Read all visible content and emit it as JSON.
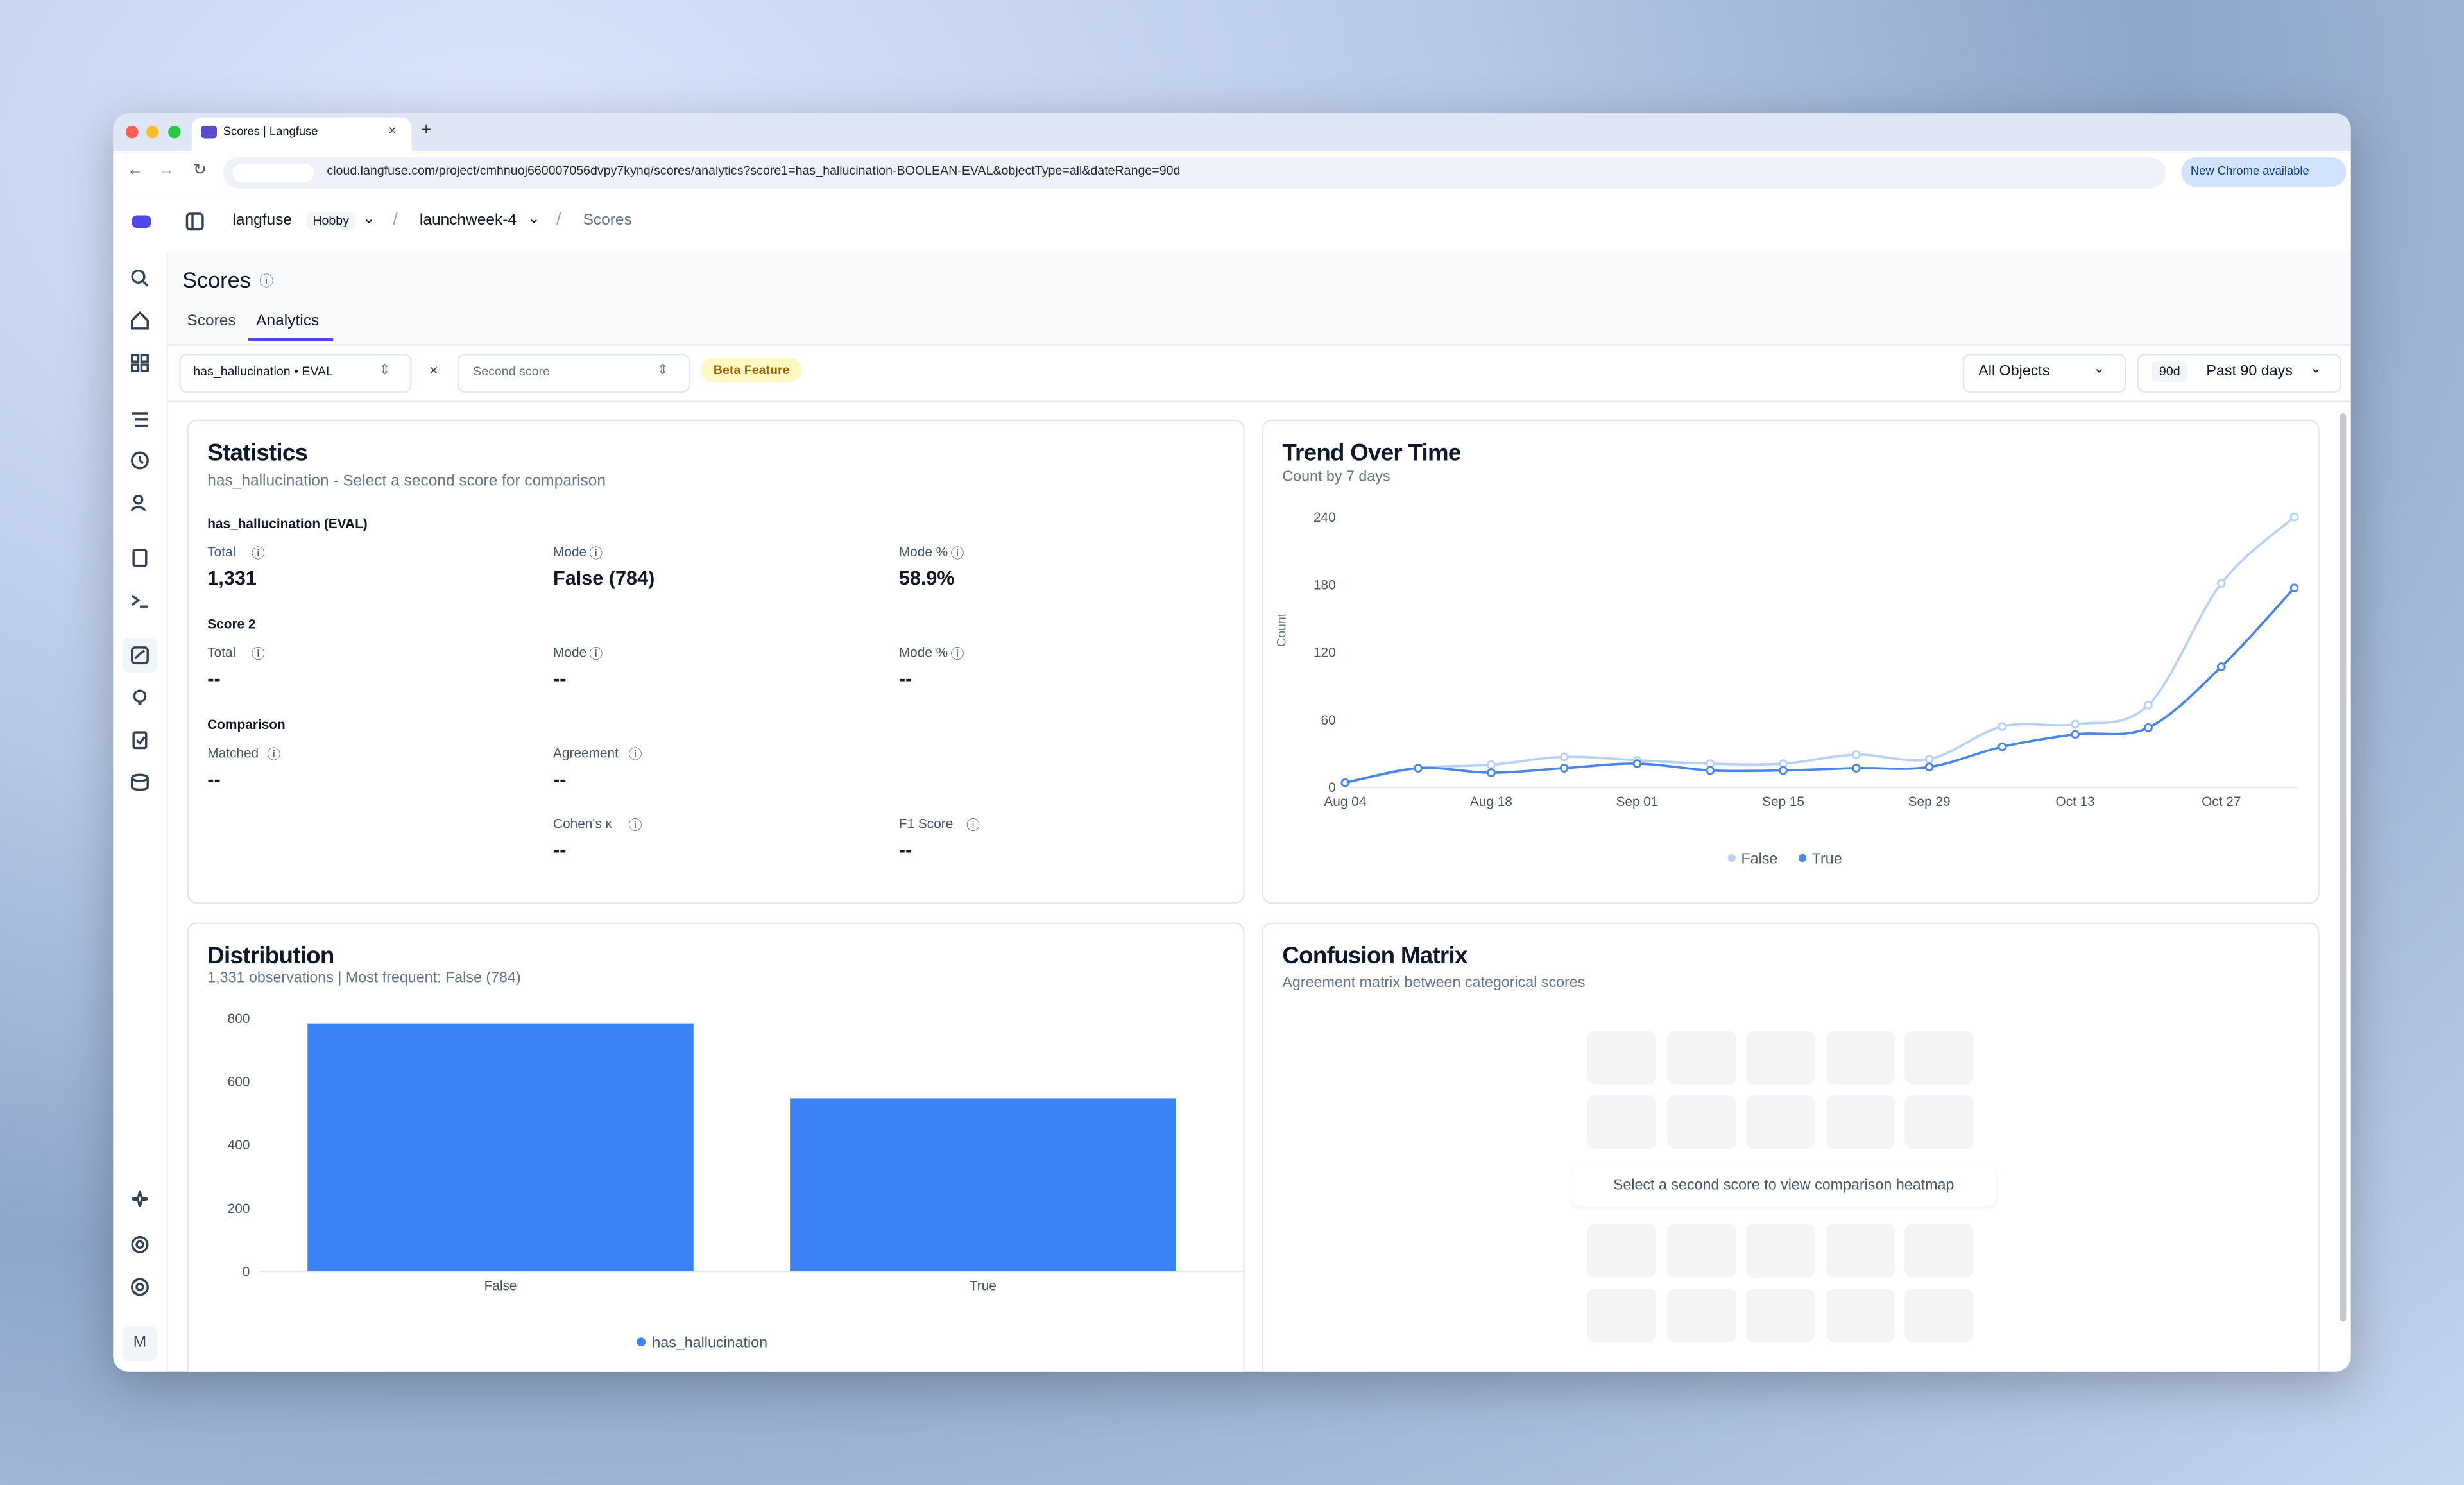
{
  "browser": {
    "tab_title": "Scores | Langfuse",
    "url": "cloud.langfuse.com/project/cmhnuoj660007056dvpy7kynq/scores/analytics?score1=has_hallucination-BOOLEAN-EVAL&objectType=all&dateRange=90d",
    "update_button": "New Chrome available"
  },
  "breadcrumb": {
    "org": "langfuse",
    "plan": "Hobby",
    "project": "launchweek-4",
    "page": "Scores"
  },
  "sidebar": {
    "avatar": "M"
  },
  "header": {
    "title": "Scores",
    "tabs": [
      "Scores",
      "Analytics"
    ]
  },
  "filters": {
    "score1": "has_hallucination • EVAL",
    "score2": "Second score",
    "badge": "Beta Feature",
    "objects": "All Objects",
    "range_badge": "90d",
    "range": "Past 90 days"
  },
  "statistics": {
    "title": "Statistics",
    "subtitle": "has_hallucination - Select a second score for comparison",
    "sections": [
      {
        "heading": "has_hallucination (EVAL)",
        "items": [
          {
            "label": "Total",
            "value": "1,331"
          },
          {
            "label": "Mode",
            "value": "False (784)"
          },
          {
            "label": "Mode %",
            "value": "58.9%"
          }
        ]
      },
      {
        "heading": "Score 2",
        "items": [
          {
            "label": "Total",
            "value": "--"
          },
          {
            "label": "Mode",
            "value": "--"
          },
          {
            "label": "Mode %",
            "value": "--"
          }
        ]
      },
      {
        "heading": "Comparison",
        "items": [
          {
            "label": "Matched",
            "value": "--"
          },
          {
            "label": "Agreement",
            "value": "--"
          },
          {
            "label": "Cohen's κ",
            "value": "--"
          },
          {
            "label": "F1 Score",
            "value": "--"
          }
        ]
      }
    ]
  },
  "confusion_matrix": {
    "title": "Confusion Matrix",
    "subtitle": "Agreement matrix between categorical scores",
    "message": "Select a second score to view comparison heatmap"
  },
  "chart_data": [
    {
      "type": "line",
      "title": "Trend Over Time",
      "subtitle": "Count by 7 days",
      "y_label": "Count",
      "categories": [
        "Aug 04",
        null,
        "Aug 18",
        null,
        "Sep 01",
        null,
        "Sep 15",
        null,
        "Sep 29",
        null,
        "Oct 13",
        null,
        "Oct 27",
        null
      ],
      "series": [
        {
          "name": "False",
          "color": "#b9d1f7",
          "values": [
            4,
            17,
            20,
            27,
            24,
            21,
            21,
            29,
            25,
            54,
            56,
            73,
            181,
            240
          ]
        },
        {
          "name": "True",
          "color": "#4a86e8",
          "values": [
            4,
            17,
            13,
            17,
            21,
            15,
            15,
            17,
            18,
            36,
            47,
            53,
            107,
            177
          ]
        }
      ],
      "ylim": [
        0,
        240
      ],
      "yticks": [
        0,
        60,
        120,
        180,
        240
      ]
    },
    {
      "type": "bar",
      "title": "Distribution",
      "subtitle": "1,331 observations | Most frequent: False (784)",
      "categories": [
        "False",
        "True"
      ],
      "series": [
        {
          "name": "has_hallucination",
          "color": "#3b82f6",
          "values": [
            784,
            547
          ]
        }
      ],
      "ylim": [
        0,
        800
      ],
      "yticks": [
        0,
        200,
        400,
        600,
        800
      ]
    }
  ]
}
